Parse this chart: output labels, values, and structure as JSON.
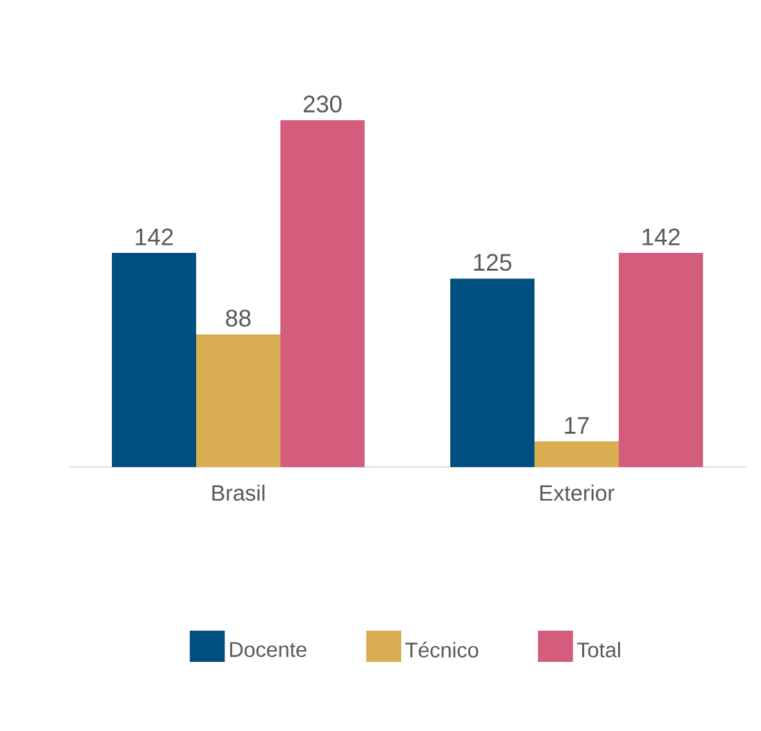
{
  "chart_data": {
    "type": "bar",
    "categories": [
      "Brasil",
      "Exterior"
    ],
    "series": [
      {
        "name": "Docente",
        "color": "#00507f",
        "values": [
          142,
          125
        ]
      },
      {
        "name": "Técnico",
        "color": "#d9ad52",
        "values": [
          88,
          17
        ]
      },
      {
        "name": "Total",
        "color": "#d45c7d",
        "values": [
          230,
          142
        ]
      }
    ],
    "data_labels": true,
    "legend": "bottom"
  }
}
